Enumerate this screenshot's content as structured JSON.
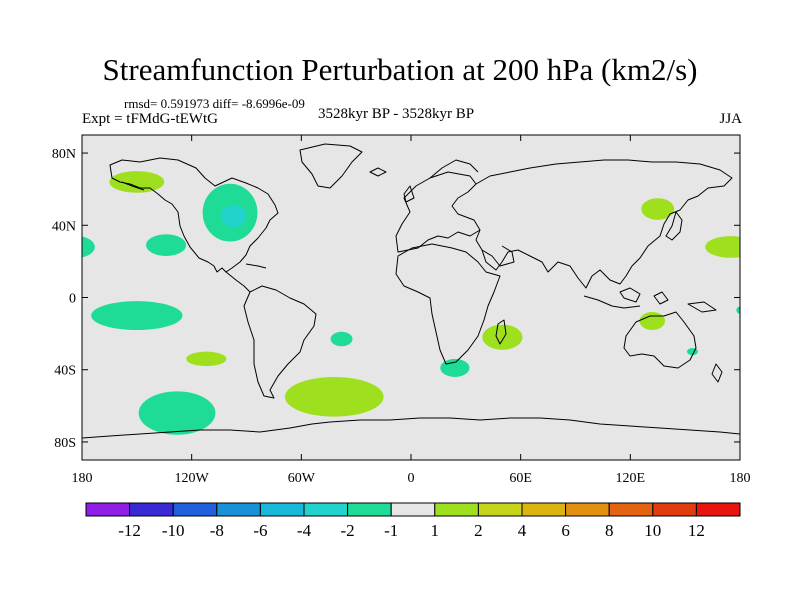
{
  "title": "Streamfunction Perturbation at 200 hPa (km2/s)",
  "stats_line": "rmsd= 0.591973 diff= -8.6996e-09",
  "experiment": "Expt = tFMdG-tEWtG",
  "period": "3528kyr BP - 3528kyr BP",
  "season": "JJA",
  "chart_data": {
    "type": "heatmap",
    "subtype": "global-map-contour",
    "variable": "Streamfunction Perturbation",
    "level": "200 hPa",
    "units": "km2/s",
    "xlim": [
      -180,
      180
    ],
    "ylim": [
      -90,
      90
    ],
    "x_ticks": [
      {
        "value": -180,
        "label": "180"
      },
      {
        "value": -120,
        "label": "120W"
      },
      {
        "value": -60,
        "label": "60W"
      },
      {
        "value": 0,
        "label": "0"
      },
      {
        "value": 60,
        "label": "60E"
      },
      {
        "value": 120,
        "label": "120E"
      },
      {
        "value": 180,
        "label": "180"
      }
    ],
    "y_ticks": [
      {
        "value": 80,
        "label": "80N"
      },
      {
        "value": 40,
        "label": "40N"
      },
      {
        "value": 0,
        "label": "0"
      },
      {
        "value": -40,
        "label": "40S"
      },
      {
        "value": -80,
        "label": "80S"
      }
    ],
    "colorbar": {
      "colors": [
        "#8f1ee6",
        "#3a2ad6",
        "#1f5fdc",
        "#1792d8",
        "#18b8d8",
        "#22d2cc",
        "#1edc96",
        "#e6e6e6",
        "#9ee01e",
        "#c6d41a",
        "#dcb410",
        "#e29010",
        "#e26410",
        "#e03c10",
        "#e8140e"
      ],
      "labels": [
        "-12",
        "-10",
        "-8",
        "-6",
        "-4",
        "-2",
        "-1",
        "1",
        "2",
        "4",
        "6",
        "8",
        "10",
        "12"
      ],
      "background_color": "#e6e6e6"
    },
    "anomalies": [
      {
        "lon": -150,
        "lat": 64,
        "rlon": 15,
        "rlat": 6,
        "level": "2"
      },
      {
        "lon": -99,
        "lat": 47,
        "rlon": 15,
        "rlat": 16,
        "level": "-1"
      },
      {
        "lon": -97,
        "lat": 45,
        "rlon": 7,
        "rlat": 6,
        "level": "-2"
      },
      {
        "lon": -134,
        "lat": 29,
        "rlon": 11,
        "rlat": 6,
        "level": "-1"
      },
      {
        "lon": -183,
        "lat": 28,
        "rlon": 10,
        "rlat": 6,
        "level": "-1"
      },
      {
        "lon": -150,
        "lat": -10,
        "rlon": 25,
        "rlat": 8,
        "level": "-1"
      },
      {
        "lon": -112,
        "lat": -34,
        "rlon": 11,
        "rlat": 4,
        "level": "2"
      },
      {
        "lon": -128,
        "lat": -64,
        "rlon": 21,
        "rlat": 12,
        "level": "-1"
      },
      {
        "lon": -38,
        "lat": -23,
        "rlon": 6,
        "rlat": 4,
        "level": "-1"
      },
      {
        "lon": -42,
        "lat": -55,
        "rlon": 27,
        "rlat": 11,
        "level": "2"
      },
      {
        "lon": 24,
        "lat": -39,
        "rlon": 8,
        "rlat": 5,
        "level": "-1"
      },
      {
        "lon": 50,
        "lat": -22,
        "rlon": 11,
        "rlat": 7,
        "level": "2"
      },
      {
        "lon": 132,
        "lat": -13,
        "rlon": 7,
        "rlat": 5,
        "level": "2"
      },
      {
        "lon": 154,
        "lat": -30,
        "rlon": 3,
        "rlat": 2,
        "level": "-1"
      },
      {
        "lon": 180,
        "lat": -7,
        "rlon": 2,
        "rlat": 2,
        "level": "-1"
      },
      {
        "lon": 135,
        "lat": 49,
        "rlon": 9,
        "rlat": 6,
        "level": "2"
      },
      {
        "lon": 175,
        "lat": 28,
        "rlon": 14,
        "rlat": 6,
        "level": "2"
      }
    ]
  }
}
